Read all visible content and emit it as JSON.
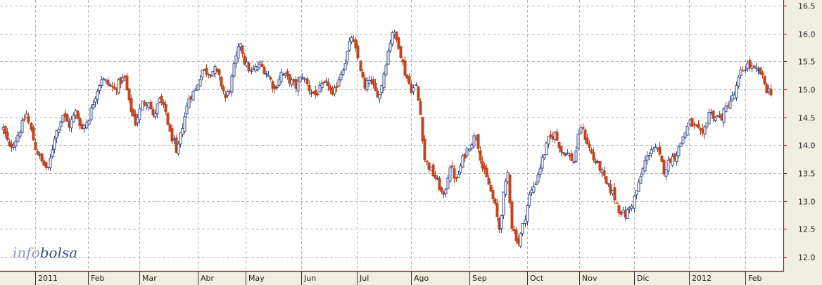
{
  "logo": {
    "part1": "info",
    "part2": "bolsa"
  },
  "chart_data": {
    "type": "candlestick",
    "ylim": [
      11.75,
      16.6
    ],
    "y_ticks": [
      12.0,
      12.5,
      13.0,
      13.5,
      14.0,
      14.5,
      15.0,
      15.5,
      16.0,
      16.5
    ],
    "x_labels": [
      "2011",
      "Feb",
      "Mar",
      "Abr",
      "May",
      "Jun",
      "Jul",
      "Ago",
      "Sep",
      "Oct",
      "Nov",
      "Dic",
      "2012",
      "Feb"
    ],
    "grid": true,
    "colors": {
      "up": "#3a4a8c",
      "down": "#c0441e",
      "grid": "#b4b4b4",
      "border": "#8b1a1a",
      "plot_bg": "#ffffff",
      "frame_bg": "#f1efdf"
    },
    "series": [
      {
        "close_path": [
          [
            0,
            14.3
          ],
          [
            3,
            13.95
          ],
          [
            6,
            14.1
          ],
          [
            11,
            14.55
          ],
          [
            15,
            13.95
          ],
          [
            18,
            13.7
          ],
          [
            21,
            13.55
          ],
          [
            24,
            14.15
          ],
          [
            28,
            14.55
          ],
          [
            31,
            14.35
          ],
          [
            34,
            14.6
          ],
          [
            37,
            14.3
          ],
          [
            40,
            14.5
          ],
          [
            43,
            14.9
          ],
          [
            46,
            15.2
          ],
          [
            49,
            15.1
          ],
          [
            52,
            15.0
          ],
          [
            55,
            15.15
          ],
          [
            57,
            15.2
          ],
          [
            59,
            14.75
          ],
          [
            62,
            14.4
          ],
          [
            65,
            14.75
          ],
          [
            68,
            14.8
          ],
          [
            70,
            14.5
          ],
          [
            73,
            14.8
          ],
          [
            76,
            14.6
          ],
          [
            78,
            14.2
          ],
          [
            80,
            14.05
          ],
          [
            81,
            13.8
          ],
          [
            84,
            14.35
          ],
          [
            87,
            14.85
          ],
          [
            90,
            15.0
          ],
          [
            93,
            15.35
          ],
          [
            96,
            15.3
          ],
          [
            99,
            15.35
          ],
          [
            101,
            15.2
          ],
          [
            104,
            14.85
          ],
          [
            106,
            15.0
          ],
          [
            108,
            15.4
          ],
          [
            111,
            15.85
          ],
          [
            113,
            15.5
          ],
          [
            116,
            15.3
          ],
          [
            120,
            15.45
          ],
          [
            124,
            15.25
          ],
          [
            127,
            15.0
          ],
          [
            130,
            15.3
          ],
          [
            133,
            15.2
          ],
          [
            137,
            15.05
          ],
          [
            140,
            15.25
          ],
          [
            143,
            15.0
          ],
          [
            146,
            14.9
          ],
          [
            149,
            15.05
          ],
          [
            152,
            15.1
          ],
          [
            154,
            14.85
          ],
          [
            157,
            15.2
          ],
          [
            160,
            15.5
          ],
          [
            163,
            15.95
          ],
          [
            166,
            15.55
          ],
          [
            169,
            15.0
          ],
          [
            171,
            15.2
          ],
          [
            174,
            14.95
          ],
          [
            176,
            14.9
          ],
          [
            179,
            15.5
          ],
          [
            182,
            16.05
          ],
          [
            185,
            15.8
          ],
          [
            188,
            15.3
          ],
          [
            191,
            15.0
          ],
          [
            193,
            15.05
          ],
          [
            195,
            14.55
          ],
          [
            197,
            13.75
          ],
          [
            200,
            13.55
          ],
          [
            203,
            13.35
          ],
          [
            206,
            13.05
          ],
          [
            209,
            13.65
          ],
          [
            212,
            13.35
          ],
          [
            215,
            13.75
          ],
          [
            218,
            14.0
          ],
          [
            221,
            14.2
          ],
          [
            224,
            13.6
          ],
          [
            227,
            13.3
          ],
          [
            230,
            12.9
          ],
          [
            232,
            12.5
          ],
          [
            234,
            13.1
          ],
          [
            236,
            13.5
          ],
          [
            238,
            12.55
          ],
          [
            241,
            12.25
          ],
          [
            243,
            12.55
          ],
          [
            246,
            13.1
          ],
          [
            249,
            13.35
          ],
          [
            252,
            13.75
          ],
          [
            255,
            14.1
          ],
          [
            258,
            14.2
          ],
          [
            261,
            13.9
          ],
          [
            264,
            13.85
          ],
          [
            267,
            13.7
          ],
          [
            270,
            14.35
          ],
          [
            273,
            14.05
          ],
          [
            276,
            13.75
          ],
          [
            279,
            13.6
          ],
          [
            282,
            13.3
          ],
          [
            285,
            13.15
          ],
          [
            288,
            12.85
          ],
          [
            291,
            12.75
          ],
          [
            294,
            12.95
          ],
          [
            297,
            13.3
          ],
          [
            300,
            13.7
          ],
          [
            303,
            13.95
          ],
          [
            306,
            13.9
          ],
          [
            309,
            13.55
          ],
          [
            312,
            13.75
          ],
          [
            315,
            13.85
          ],
          [
            318,
            14.15
          ],
          [
            321,
            14.4
          ],
          [
            324,
            14.3
          ],
          [
            327,
            14.15
          ],
          [
            330,
            14.6
          ],
          [
            333,
            14.5
          ],
          [
            336,
            14.5
          ],
          [
            339,
            14.75
          ],
          [
            342,
            14.9
          ],
          [
            345,
            15.3
          ],
          [
            348,
            15.45
          ],
          [
            351,
            15.35
          ],
          [
            354,
            15.3
          ],
          [
            357,
            15.0
          ],
          [
            359,
            14.95
          ]
        ],
        "candles": []
      }
    ]
  }
}
